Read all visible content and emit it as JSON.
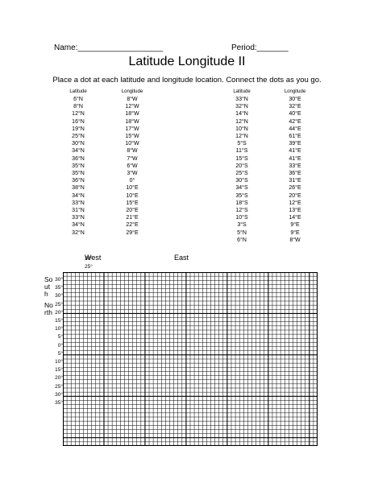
{
  "header": {
    "name_label": "Name:___________________",
    "period_label": "Period:_______",
    "title": "Latitude Longitude II",
    "instructions": "Place a dot at each latitude and longitude location. Connect the dots as you go."
  },
  "table_left": {
    "lat_header": "Latitude",
    "lon_header": "Longitude",
    "rows": [
      [
        "6°N",
        "8°W"
      ],
      [
        "8°N",
        "12°W"
      ],
      [
        "12°N",
        "18°W"
      ],
      [
        "16°N",
        "18°W"
      ],
      [
        "19°N",
        "17°W"
      ],
      [
        "25°N",
        "15°W"
      ],
      [
        "30°N",
        "10°W"
      ],
      [
        "34°N",
        "8°W"
      ],
      [
        "36°N",
        "7°W"
      ],
      [
        "35°N",
        "6°W"
      ],
      [
        "35°N",
        "3°W"
      ],
      [
        "36°N",
        "0°"
      ],
      [
        "38°N",
        "10°E"
      ],
      [
        "34°N",
        "10°E"
      ],
      [
        "33°N",
        "15°E"
      ],
      [
        "31°N",
        "20°E"
      ],
      [
        "33°N",
        "21°E"
      ],
      [
        "34°N",
        "22°E"
      ],
      [
        "32°N",
        "29°E"
      ]
    ]
  },
  "table_right": {
    "lat_header": "Latitude",
    "lon_header": "Longitude",
    "rows": [
      [
        "33°N",
        "30°E"
      ],
      [
        "32°N",
        "32°E"
      ],
      [
        "14°N",
        "40°E"
      ],
      [
        "12°N",
        "42°E"
      ],
      [
        "10°N",
        "44°E"
      ],
      [
        "12°N",
        "61°E"
      ],
      [
        "5°S",
        "39°E"
      ],
      [
        "11°S",
        "41°E"
      ],
      [
        "15°S",
        "41°E"
      ],
      [
        "20°S",
        "33°E"
      ],
      [
        "25°S",
        "36°E"
      ],
      [
        "30°S",
        "31°E"
      ],
      [
        "34°S",
        "26°E"
      ],
      [
        "35°S",
        "20°E"
      ],
      [
        "18°S",
        "12°E"
      ],
      [
        "12°S",
        "13°E"
      ],
      [
        "10°S",
        "14°E"
      ],
      [
        "3°S",
        "9°E"
      ],
      [
        "5°N",
        "9°E"
      ],
      [
        "6°N",
        "8°W"
      ]
    ]
  },
  "grid_labels": {
    "west": "West",
    "west_degree": "30°",
    "west_degree2": "25°",
    "east": "East",
    "south_lines": [
      "So",
      "ut",
      "h"
    ],
    "north_lines": [
      "No",
      "rth"
    ],
    "lat_ticks": [
      "30°",
      "35°",
      "30°",
      "25°",
      "20°",
      "15°",
      "10°",
      "5°",
      "0°",
      "5°",
      "10°",
      "15°",
      "20°",
      "25°",
      "30°",
      "35°"
    ]
  }
}
